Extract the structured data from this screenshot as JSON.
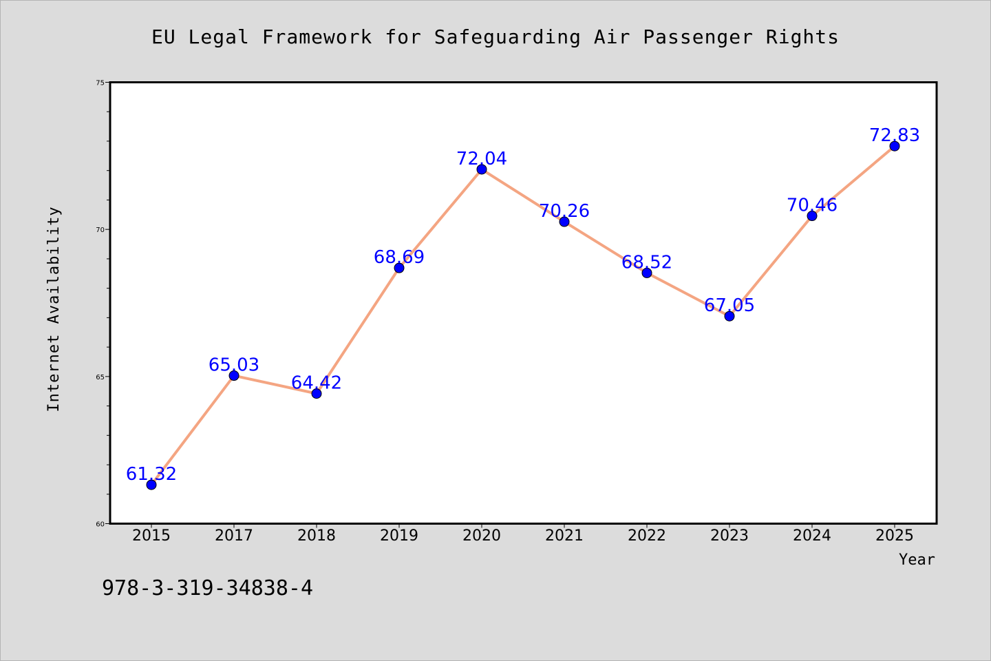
{
  "chart_data": {
    "type": "line",
    "title": "EU Legal Framework for Safeguarding Air Passenger Rights",
    "xlabel": "Year",
    "ylabel": "Internet Availability",
    "categories": [
      "2015",
      "2017",
      "2018",
      "2019",
      "2020",
      "2021",
      "2022",
      "2023",
      "2024",
      "2025"
    ],
    "series": [
      {
        "values": [
          61.32,
          65.03,
          64.42,
          68.69,
          72.04,
          70.26,
          68.52,
          67.05,
          70.46,
          72.83
        ],
        "data_labels": [
          "61.32",
          "65.03",
          "64.42",
          "68.69",
          "72.04",
          "70.26",
          "68.52",
          "67.05",
          "70.46",
          "72.83"
        ],
        "line_color": "#f4a582",
        "marker_color": "#0000ff"
      }
    ],
    "ylim": [
      60,
      75
    ],
    "yticks": [
      "60",
      "65",
      "70",
      "75"
    ],
    "grid": false,
    "legend": "none"
  },
  "footnote": "978-3-319-34838-4"
}
